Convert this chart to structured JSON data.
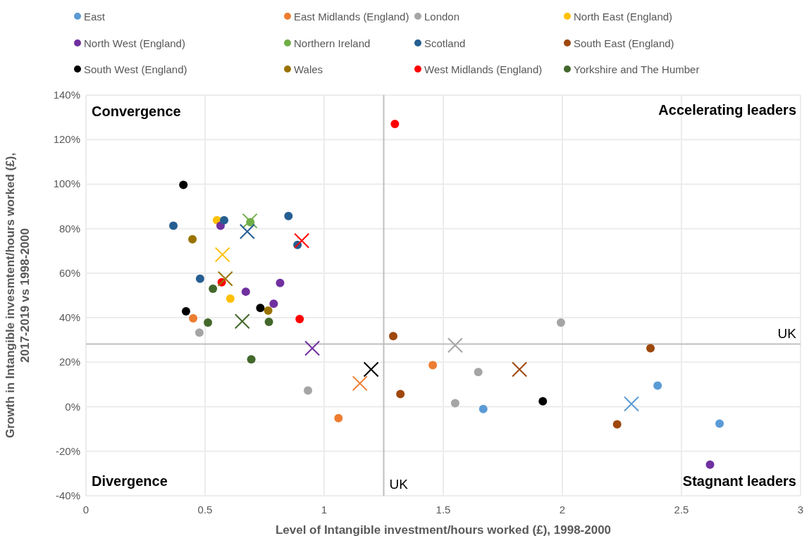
{
  "chart_data": {
    "type": "scatter",
    "xlabel": "Level of Intangible investment/hours worked (£), 1998-2000",
    "ylabel": "Growth in Intangible invesmtent/hours worked (£), 2017-2019 vs 1998-2000",
    "xlim": [
      0,
      3
    ],
    "xticks": [
      0,
      0.5,
      1,
      1.5,
      2,
      2.5,
      3
    ],
    "ylim": [
      -40,
      140
    ],
    "yticks": [
      {
        "value": -40,
        "label": "-40%"
      },
      {
        "value": -20,
        "label": "-20%"
      },
      {
        "value": 0,
        "label": "0%"
      },
      {
        "value": 20,
        "label": "20%"
      },
      {
        "value": 40,
        "label": "40%"
      },
      {
        "value": 60,
        "label": "60%"
      },
      {
        "value": 80,
        "label": "80%"
      },
      {
        "value": 100,
        "label": "100%"
      },
      {
        "value": 120,
        "label": "120%"
      },
      {
        "value": 140,
        "label": "140%"
      }
    ],
    "grid": true,
    "legend": "top",
    "ref_lines": [
      {
        "axis": "x",
        "value": 1.25,
        "label": "UK",
        "color": "#bfbfbf"
      },
      {
        "axis": "y",
        "value": 28.2,
        "label": "UK",
        "color": "#bfbfbf"
      }
    ],
    "annotations": [
      "Convergence",
      "Accelerating leaders",
      "Divergence",
      "Stagnant leaders"
    ],
    "series": [
      {
        "name": "East",
        "color": "#5b9bd5",
        "marker": "circle",
        "x": [
          1.668,
          2.4,
          2.66
        ],
        "values": [
          -1.0,
          9.5,
          -7.6
        ]
      },
      {
        "name": "East Midlands (England)",
        "color": "#ed7d31",
        "marker": "circle",
        "x": [
          0.45,
          1.06,
          1.456
        ],
        "values": [
          39.7,
          -5.1,
          18.7
        ]
      },
      {
        "name": "London",
        "color": "#a5a5a5",
        "marker": "circle",
        "x": [
          0.476,
          0.932,
          1.55,
          1.647,
          1.994
        ],
        "values": [
          33.3,
          7.3,
          1.6,
          15.6,
          37.8
        ]
      },
      {
        "name": "North East (England)",
        "color": "#ffc000",
        "marker": "circle",
        "x": [
          0.55,
          0.606
        ],
        "values": [
          83.8,
          48.6
        ]
      },
      {
        "name": "North West (England)",
        "color": "#7030a0",
        "marker": "circle",
        "x": [
          0.565,
          0.671,
          0.815,
          0.788,
          2.62
        ],
        "values": [
          81.3,
          51.7,
          55.6,
          46.3,
          -26.0
        ]
      },
      {
        "name": "Northern Ireland",
        "color": "#70ad47",
        "marker": "circle",
        "x": [
          0.69
        ],
        "values": [
          82.9
        ]
      },
      {
        "name": "Scotland",
        "color": "#255e91",
        "marker": "circle",
        "x": [
          0.367,
          0.58,
          0.85,
          0.888,
          0.479
        ],
        "values": [
          81.3,
          83.8,
          85.7,
          72.7,
          57.5
        ]
      },
      {
        "name": "South East (England)",
        "color": "#9e480e",
        "marker": "circle",
        "x": [
          1.29,
          1.32,
          2.23,
          2.37
        ],
        "values": [
          31.7,
          5.7,
          -7.9,
          26.3
        ]
      },
      {
        "name": "South West (England)",
        "color": "#000000",
        "marker": "circle",
        "x": [
          0.409,
          0.42,
          0.732,
          1.918
        ],
        "values": [
          99.7,
          42.9,
          44.4,
          2.5
        ]
      },
      {
        "name": "Wales",
        "color": "#997300",
        "marker": "circle",
        "x": [
          0.447,
          0.765
        ],
        "values": [
          75.2,
          43.2
        ]
      },
      {
        "name": "West Midlands (England)",
        "color": "#ff0000",
        "marker": "circle",
        "x": [
          0.57,
          0.897,
          1.297
        ],
        "values": [
          55.9,
          39.4,
          127
        ]
      },
      {
        "name": "Yorkshire and The Humber",
        "color": "#43682b",
        "marker": "circle",
        "x": [
          0.533,
          0.512,
          0.768,
          0.694
        ],
        "values": [
          53.0,
          37.8,
          38.1,
          21.3
        ]
      },
      {
        "color": "#5b9bd5",
        "marker": "cross",
        "x": [
          2.29
        ],
        "values": [
          1.3
        ]
      },
      {
        "color": "#ed7d31",
        "marker": "cross",
        "x": [
          1.15
        ],
        "values": [
          10.5
        ]
      },
      {
        "color": "#a5a5a5",
        "marker": "cross",
        "x": [
          1.55
        ],
        "values": [
          27.6
        ]
      },
      {
        "color": "#ffc000",
        "marker": "cross",
        "x": [
          0.573
        ],
        "values": [
          68.3
        ]
      },
      {
        "color": "#7030a0",
        "marker": "cross",
        "x": [
          0.95
        ],
        "values": [
          26.3
        ]
      },
      {
        "color": "#70ad47",
        "marker": "cross",
        "x": [
          0.688
        ],
        "values": [
          83.5
        ]
      },
      {
        "color": "#255e91",
        "marker": "cross",
        "x": [
          0.677
        ],
        "values": [
          78.7
        ]
      },
      {
        "color": "#9e480e",
        "marker": "cross",
        "x": [
          1.82
        ],
        "values": [
          16.8
        ]
      },
      {
        "color": "#000000",
        "marker": "cross",
        "x": [
          1.197
        ],
        "values": [
          16.8
        ]
      },
      {
        "color": "#997300",
        "marker": "cross",
        "x": [
          0.585
        ],
        "values": [
          57.5
        ]
      },
      {
        "color": "#ff0000",
        "marker": "cross",
        "x": [
          0.906
        ],
        "values": [
          74.6
        ]
      },
      {
        "color": "#43682b",
        "marker": "cross",
        "x": [
          0.656
        ],
        "values": [
          38.4
        ]
      }
    ]
  }
}
